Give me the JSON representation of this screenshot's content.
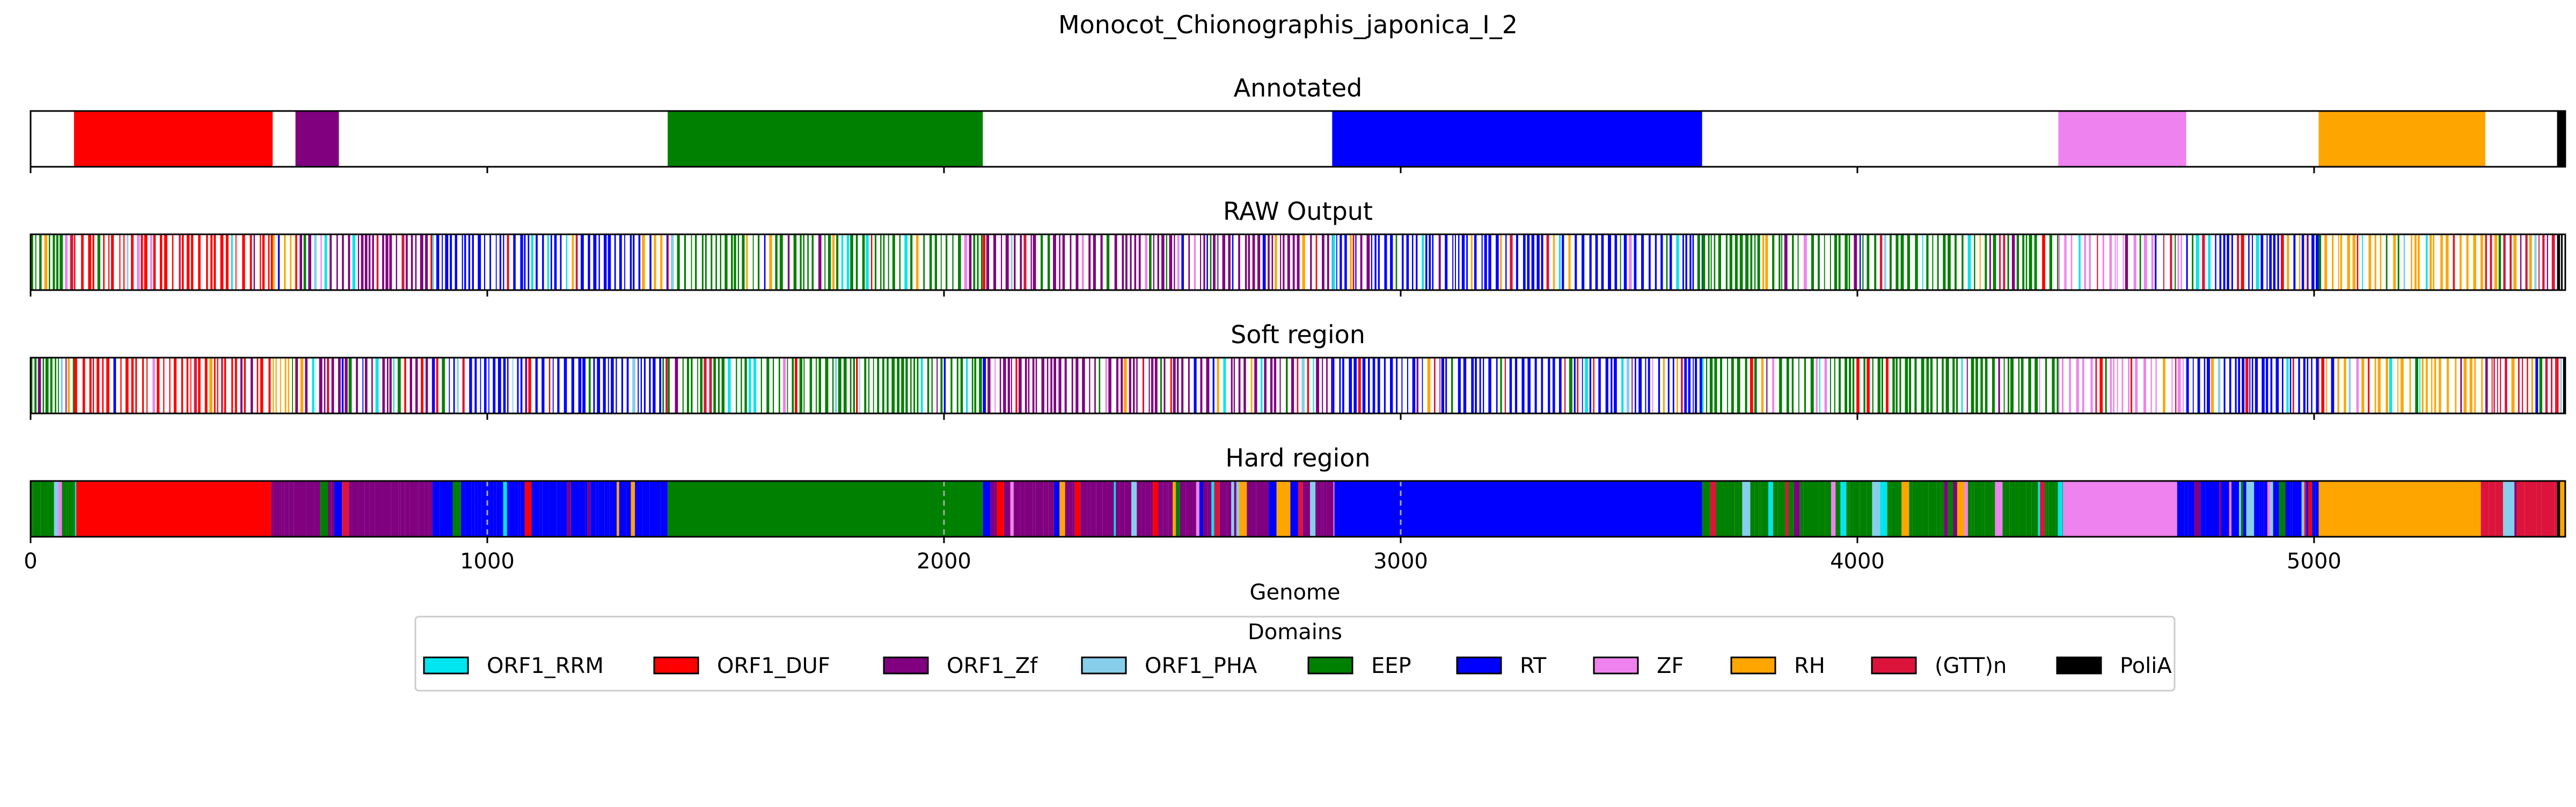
{
  "title": "Monocot_Chionographis_japonica_I_2",
  "xlabel": "Genome",
  "legend": {
    "title": "Domains",
    "placement": "bottom-center",
    "entries": [
      {
        "name": "ORF1_RRM",
        "color": "#00e5ee"
      },
      {
        "name": "ORF1_DUF",
        "color": "#ff0000"
      },
      {
        "name": "ORF1_Zf",
        "color": "#800080"
      },
      {
        "name": "ORF1_PHA",
        "color": "#87ceeb"
      },
      {
        "name": "EEP",
        "color": "#008000"
      },
      {
        "name": "RT",
        "color": "#0000ff"
      },
      {
        "name": "ZF",
        "color": "#ee82ee"
      },
      {
        "name": "RH",
        "color": "#ffa500"
      },
      {
        "name": "(GTT)n",
        "color": "#dc143c"
      },
      {
        "name": "PoliA",
        "color": "#000000"
      }
    ]
  },
  "colors": {
    "ORF1_RRM": "#00e5ee",
    "ORF1_DUF": "#ff0000",
    "ORF1_Zf": "#800080",
    "ORF1_PHA": "#87ceeb",
    "EEP": "#008000",
    "RT": "#0000ff",
    "ZF": "#ee82ee",
    "RH": "#ffa500",
    "(GTT)n": "#dc143c",
    "PoliA": "#000000"
  },
  "chart_data": {
    "type": "genome-track",
    "xlim": [
      0,
      5550
    ],
    "xticks": [
      0,
      1000,
      2000,
      3000,
      4000,
      5000
    ],
    "xtick_labels": [
      "0",
      "1000",
      "2000",
      "3000",
      "4000",
      "5000"
    ],
    "tracks": [
      {
        "title": "Annotated",
        "mode": "segments",
        "segments": [
          {
            "domain": "ORF1_DUF",
            "start": 95,
            "end": 530
          },
          {
            "domain": "ORF1_Zf",
            "start": 580,
            "end": 675
          },
          {
            "domain": "EEP",
            "start": 1395,
            "end": 2085
          },
          {
            "domain": "RT",
            "start": 2850,
            "end": 3660
          },
          {
            "domain": "ZF",
            "start": 4440,
            "end": 4720
          },
          {
            "domain": "RH",
            "start": 5010,
            "end": 5375
          },
          {
            "domain": "PoliA",
            "start": 5532,
            "end": 5550
          }
        ]
      },
      {
        "title": "RAW Output",
        "mode": "sparse",
        "regions": [
          {
            "start": 0,
            "end": 95,
            "dominant": "EEP",
            "density": 0.85
          },
          {
            "start": 95,
            "end": 530,
            "dominant": "ORF1_DUF",
            "density": 0.45
          },
          {
            "start": 530,
            "end": 580,
            "dominant": "RH",
            "density": 0.6
          },
          {
            "start": 580,
            "end": 880,
            "dominant": "ORF1_Zf",
            "density": 0.6
          },
          {
            "start": 880,
            "end": 1395,
            "dominant": "RT",
            "density": 0.6
          },
          {
            "start": 1395,
            "end": 2085,
            "dominant": "EEP",
            "density": 0.55
          },
          {
            "start": 2085,
            "end": 2850,
            "dominant": "ORF1_Zf",
            "density": 0.55
          },
          {
            "start": 2850,
            "end": 3660,
            "dominant": "RT",
            "density": 0.55
          },
          {
            "start": 3660,
            "end": 4440,
            "dominant": "EEP",
            "density": 0.55
          },
          {
            "start": 4440,
            "end": 4720,
            "dominant": "ZF",
            "density": 0.3
          },
          {
            "start": 4720,
            "end": 5010,
            "dominant": "RT",
            "density": 0.65
          },
          {
            "start": 5010,
            "end": 5375,
            "dominant": "RH",
            "density": 0.4
          },
          {
            "start": 5375,
            "end": 5532,
            "dominant": "(GTT)n",
            "density": 0.7
          },
          {
            "start": 5532,
            "end": 5550,
            "dominant": "PoliA",
            "density": 1.0
          }
        ]
      },
      {
        "title": "Soft region",
        "mode": "sparse",
        "regions": [
          {
            "start": 0,
            "end": 95,
            "dominant": "EEP",
            "density": 0.85
          },
          {
            "start": 95,
            "end": 530,
            "dominant": "ORF1_DUF",
            "density": 0.45
          },
          {
            "start": 530,
            "end": 580,
            "dominant": "RH",
            "density": 0.6
          },
          {
            "start": 580,
            "end": 880,
            "dominant": "ORF1_Zf",
            "density": 0.6
          },
          {
            "start": 880,
            "end": 1395,
            "dominant": "RT",
            "density": 0.6
          },
          {
            "start": 1395,
            "end": 2085,
            "dominant": "EEP",
            "density": 0.55
          },
          {
            "start": 2085,
            "end": 2850,
            "dominant": "ORF1_Zf",
            "density": 0.55
          },
          {
            "start": 2850,
            "end": 3660,
            "dominant": "RT",
            "density": 0.55
          },
          {
            "start": 3660,
            "end": 4440,
            "dominant": "EEP",
            "density": 0.55
          },
          {
            "start": 4440,
            "end": 4720,
            "dominant": "ZF",
            "density": 0.3
          },
          {
            "start": 4720,
            "end": 5010,
            "dominant": "RT",
            "density": 0.65
          },
          {
            "start": 5010,
            "end": 5375,
            "dominant": "RH",
            "density": 0.4
          },
          {
            "start": 5375,
            "end": 5532,
            "dominant": "(GTT)n",
            "density": 0.7
          },
          {
            "start": 5532,
            "end": 5550,
            "dominant": "PoliA",
            "density": 1.0
          }
        ]
      },
      {
        "title": "Hard region",
        "mode": "mixed",
        "segments": [
          {
            "domain": "ORF1_DUF",
            "start": 100,
            "end": 520
          },
          {
            "domain": "EEP",
            "start": 1395,
            "end": 2085
          },
          {
            "domain": "RT",
            "start": 2855,
            "end": 3660
          },
          {
            "domain": "ZF",
            "start": 4450,
            "end": 4700
          },
          {
            "domain": "RH",
            "start": 5010,
            "end": 5365
          }
        ],
        "regions": [
          {
            "start": 0,
            "end": 100,
            "dominant": "EEP",
            "density": 1.0
          },
          {
            "start": 520,
            "end": 880,
            "dominant": "ORF1_Zf",
            "density": 1.0
          },
          {
            "start": 880,
            "end": 1395,
            "dominant": "RT",
            "density": 1.0
          },
          {
            "start": 2085,
            "end": 2855,
            "dominant": "ORF1_Zf",
            "density": 1.0
          },
          {
            "start": 3660,
            "end": 4450,
            "dominant": "EEP",
            "density": 1.0
          },
          {
            "start": 4700,
            "end": 5010,
            "dominant": "RT",
            "density": 1.0
          },
          {
            "start": 5365,
            "end": 5532,
            "dominant": "(GTT)n",
            "density": 1.0
          },
          {
            "start": 5532,
            "end": 5550,
            "dominant": "PoliA",
            "density": 1.0
          }
        ],
        "dashed_markers": [
          1000,
          2000,
          3000
        ]
      }
    ]
  }
}
